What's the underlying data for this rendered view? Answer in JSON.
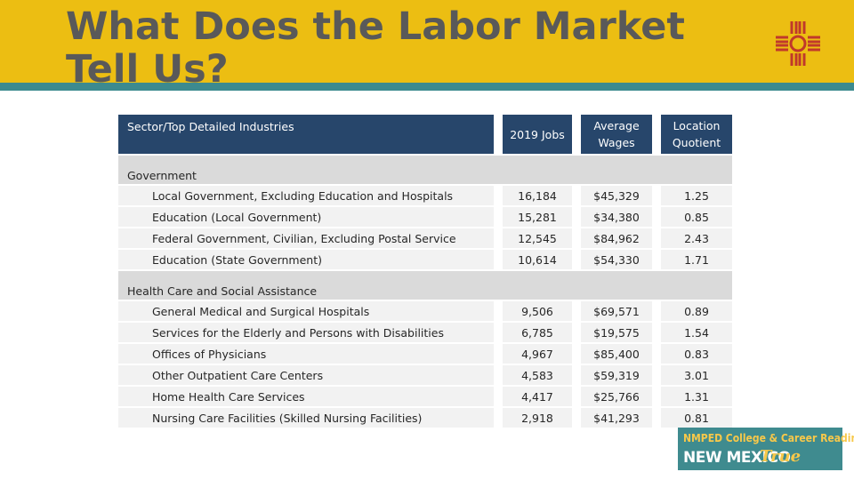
{
  "slide": {
    "title": "What Does the Labor Market Tell Us?"
  },
  "table": {
    "headers": {
      "sector": "Sector/Top Detailed Industries",
      "jobs": "2019 Jobs",
      "wages": "Average Wages",
      "lq": "Location Quotient"
    },
    "categories": [
      {
        "name": "Government",
        "rows": [
          {
            "industry": "Local Government, Excluding Education and Hospitals",
            "jobs": "16,184",
            "wages": "$45,329",
            "lq": "1.25"
          },
          {
            "industry": "Education (Local Government)",
            "jobs": "15,281",
            "wages": "$34,380",
            "lq": "0.85"
          },
          {
            "industry": "Federal Government, Civilian, Excluding Postal Service",
            "jobs": "12,545",
            "wages": "$84,962",
            "lq": "2.43"
          },
          {
            "industry": "Education (State Government)",
            "jobs": "10,614",
            "wages": "$54,330",
            "lq": "1.71"
          }
        ]
      },
      {
        "name": "Health Care and Social Assistance",
        "rows": [
          {
            "industry": "General Medical and Surgical Hospitals",
            "jobs": "9,506",
            "wages": "$69,571",
            "lq": "0.89"
          },
          {
            "industry": "Services for the Elderly and Persons with Disabilities",
            "jobs": "6,785",
            "wages": "$19,575",
            "lq": "1.54"
          },
          {
            "industry": "Offices of Physicians",
            "jobs": "4,967",
            "wages": "$85,400",
            "lq": "0.83"
          },
          {
            "industry": "Other Outpatient Care Centers",
            "jobs": "4,583",
            "wages": "$59,319",
            "lq": "3.01"
          },
          {
            "industry": "Home Health Care Services",
            "jobs": "4,417",
            "wages": "$25,766",
            "lq": "1.31"
          },
          {
            "industry": "Nursing Care Facilities (Skilled Nursing Facilities)",
            "jobs": "2,918",
            "wages": "$41,293",
            "lq": "0.81"
          }
        ]
      }
    ]
  },
  "badge": {
    "top_line": "NMPED College & Career Readiness is",
    "state": "NEW MEXICO",
    "word": "True"
  },
  "colors": {
    "header_yellow": "#ecbe12",
    "teal": "#3c8a8f",
    "table_header": "#27466b",
    "zia_red": "#c0392b",
    "badge_gold": "#f7c84a"
  },
  "icons": {
    "logo": "zia-sun-icon"
  }
}
